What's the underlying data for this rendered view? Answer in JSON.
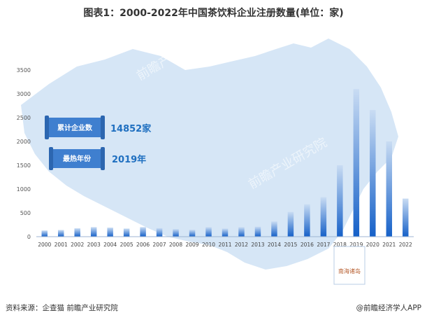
{
  "title": "图表1：2000-2022年中国茶饮料企业注册数量(单位：家)",
  "callouts": [
    {
      "label": "累计企业数",
      "value": "14852家"
    },
    {
      "label": "最热年份",
      "value": "2019年"
    }
  ],
  "map_label": "南海诸岛",
  "watermark": "前瞻产业研究院",
  "source": "资料来源：企查猫 前瞻产业研究院",
  "brand": "@前瞻经济学人APP",
  "colors": {
    "bar_top": "#c9dcf3",
    "bar_bottom": "#1560c8",
    "map": "#d6e6f6",
    "callout": "#3f7fcf"
  },
  "chart_data": {
    "type": "bar",
    "categories": [
      "2000",
      "2001",
      "2002",
      "2003",
      "2004",
      "2005",
      "2006",
      "2007",
      "2008",
      "2009",
      "2010",
      "2011",
      "2012",
      "2013",
      "2014",
      "2015",
      "2016",
      "2017",
      "2018",
      "2019",
      "2020",
      "2021",
      "2022"
    ],
    "values": [
      130,
      140,
      175,
      200,
      190,
      170,
      200,
      180,
      160,
      145,
      200,
      170,
      200,
      210,
      320,
      520,
      680,
      830,
      1500,
      3100,
      2660,
      2000,
      800
    ],
    "ylim": [
      0,
      3500
    ],
    "yticks": [
      0,
      500,
      1000,
      1500,
      2000,
      2500,
      3000,
      3500
    ],
    "grid": false
  }
}
